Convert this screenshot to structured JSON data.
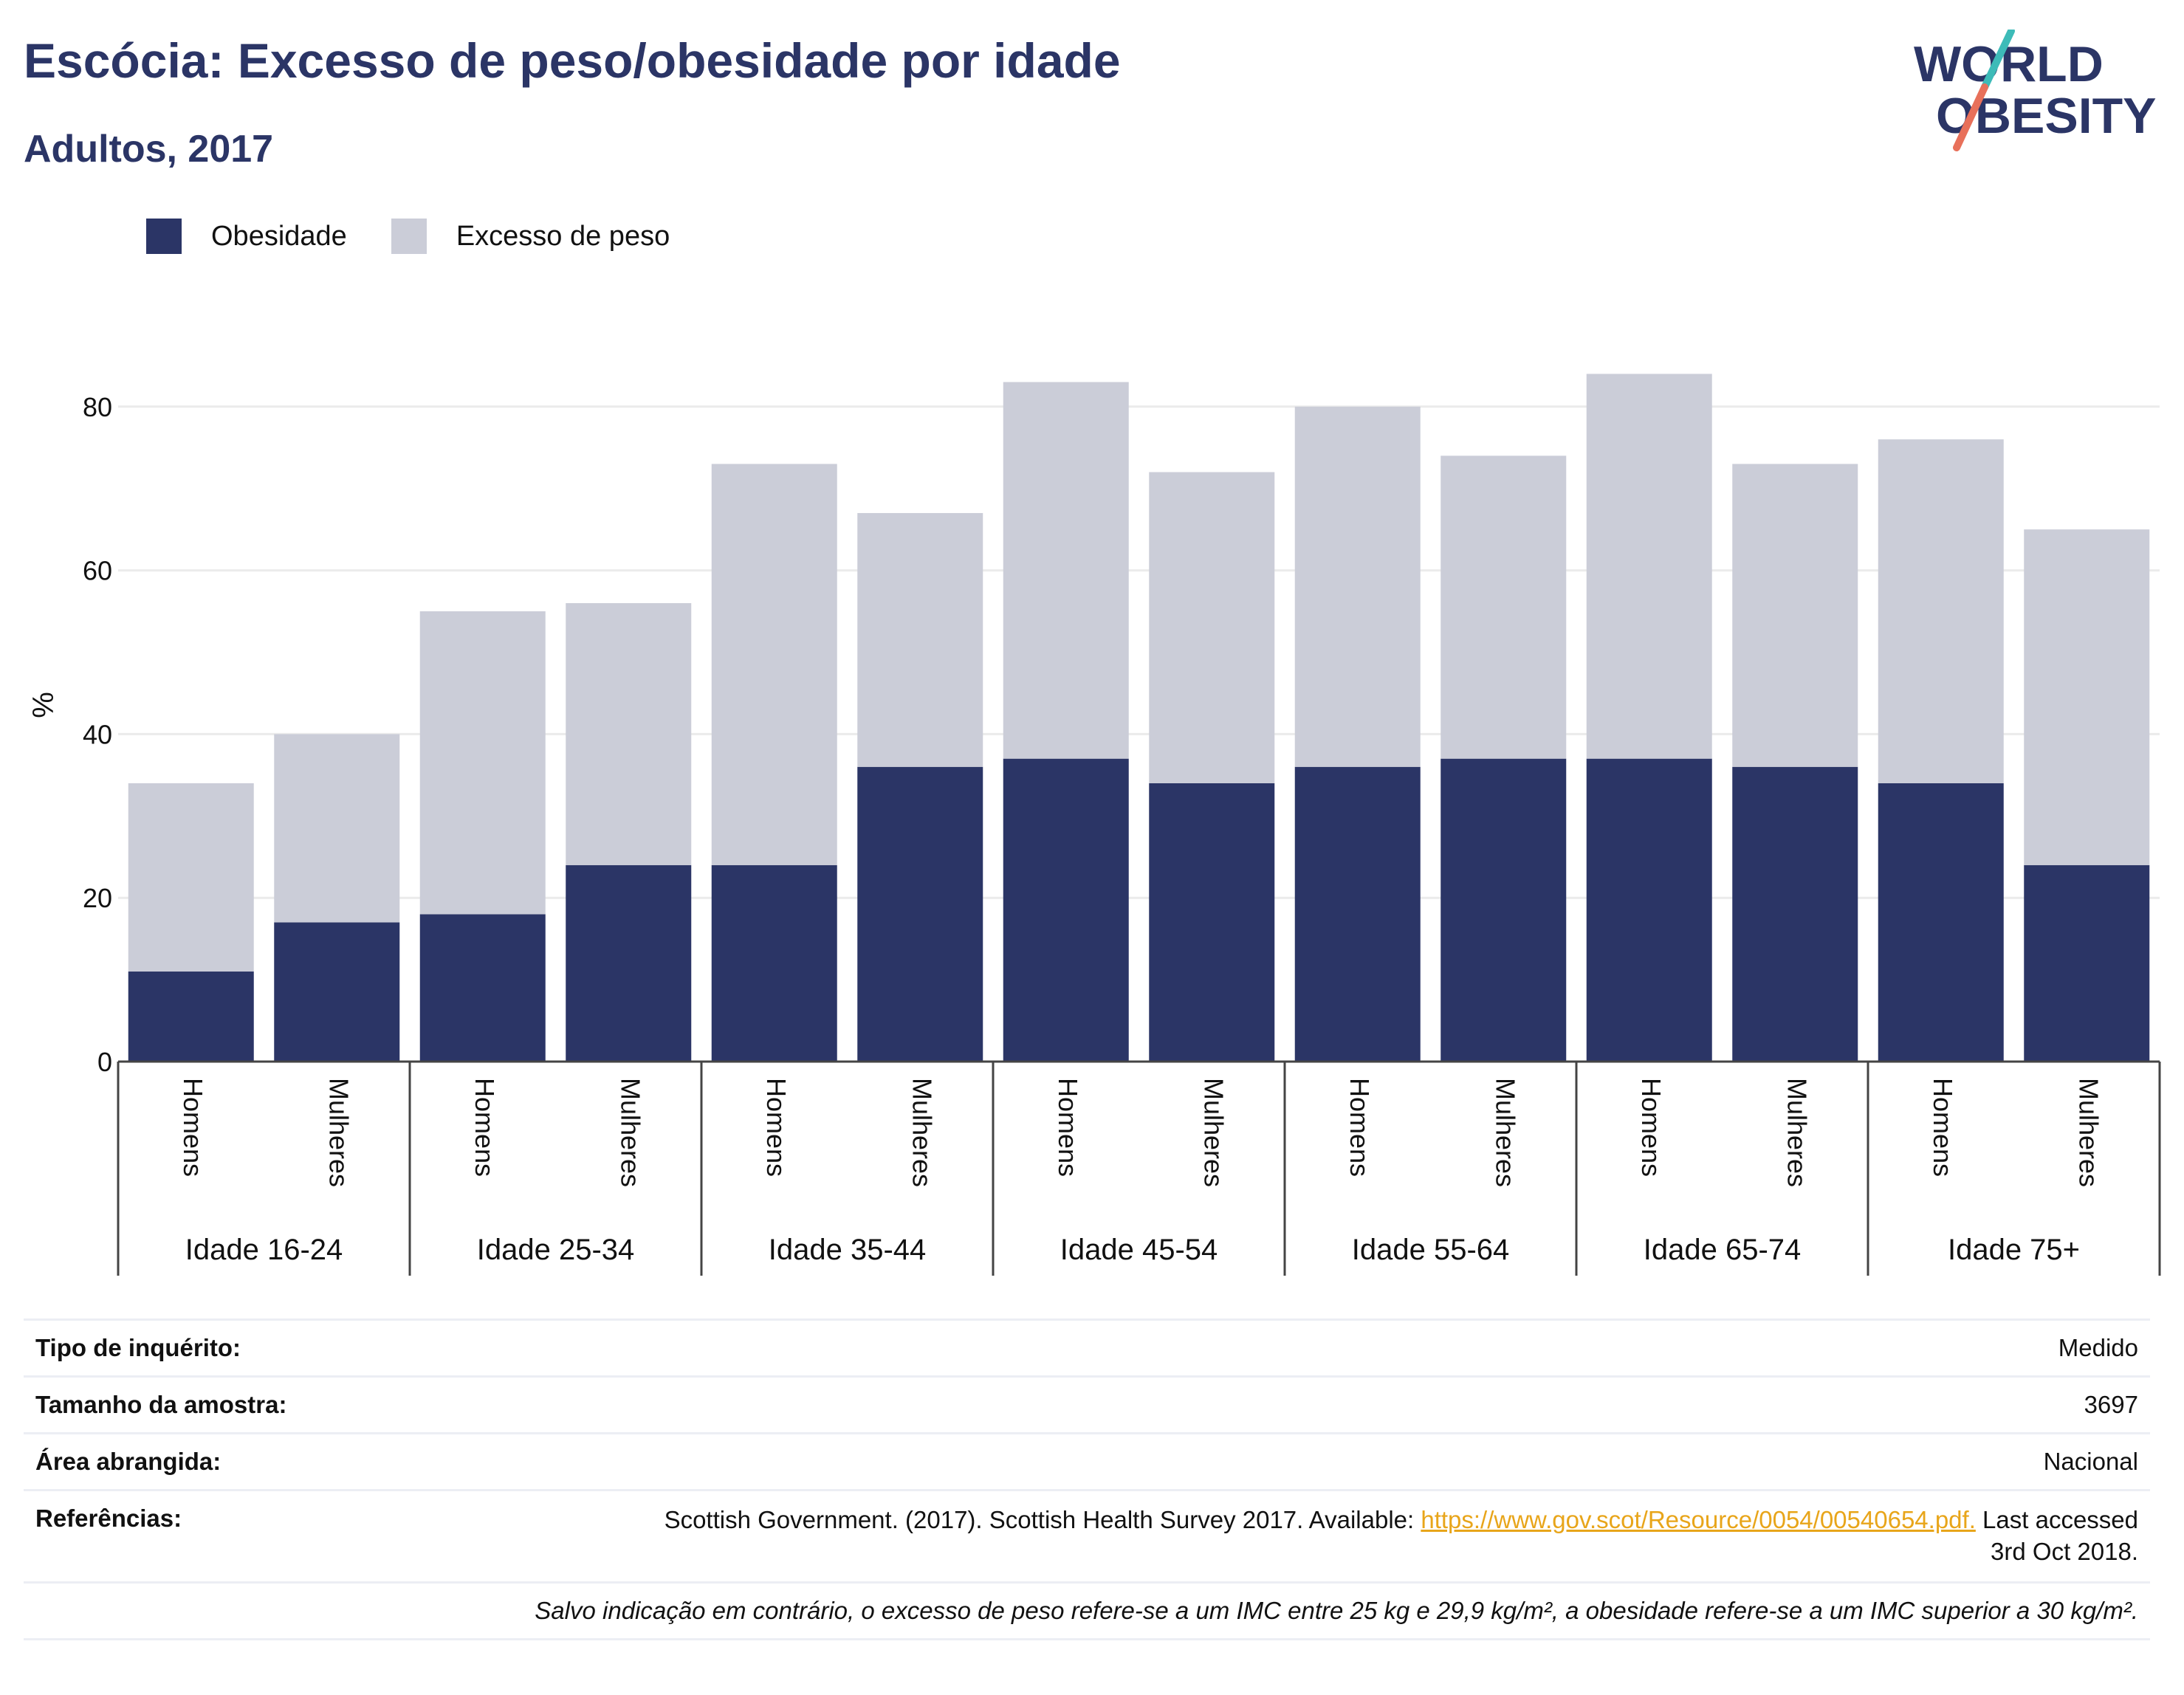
{
  "header": {
    "title": "Escócia: Excesso de peso/obesidade por idade",
    "subtitle": "Adultos, 2017",
    "logo_line1": "WORLD",
    "logo_line2": "OBESITY"
  },
  "legend": {
    "obesity_label": "Obesidade",
    "overweight_label": "Excesso de peso"
  },
  "colors": {
    "obesity": "#2b3566",
    "overweight": "#cbcdd8",
    "title": "#2b3566",
    "link": "#e8a51a",
    "logo_teal": "#3dbbb8",
    "logo_coral": "#e8705a"
  },
  "chart_data": {
    "type": "bar",
    "stacked": true,
    "ylabel": "%",
    "ylim": [
      0,
      90
    ],
    "yticks": [
      0,
      20,
      40,
      60,
      80
    ],
    "grid": true,
    "legend_position": "top-left",
    "groups": [
      "Idade 16-24",
      "Idade 25-34",
      "Idade 35-44",
      "Idade 45-54",
      "Idade 55-64",
      "Idade 65-74",
      "Idade 75+"
    ],
    "categories": [
      "Homens",
      "Mulheres",
      "Homens",
      "Mulheres",
      "Homens",
      "Mulheres",
      "Homens",
      "Mulheres",
      "Homens",
      "Mulheres",
      "Homens",
      "Mulheres",
      "Homens",
      "Mulheres"
    ],
    "series": [
      {
        "name": "Obesidade",
        "values": [
          11,
          17,
          18,
          24,
          24,
          36,
          37,
          34,
          36,
          37,
          37,
          36,
          34,
          24
        ]
      },
      {
        "name": "Excesso de peso",
        "values": [
          23,
          23,
          37,
          32,
          49,
          31,
          46,
          38,
          44,
          37,
          47,
          37,
          42,
          41
        ]
      }
    ]
  },
  "info": {
    "survey_type_label": "Tipo de inquérito:",
    "survey_type_value": "Medido",
    "sample_size_label": "Tamanho da amostra:",
    "sample_size_value": "3697",
    "area_label": "Área abrangida:",
    "area_value": "Nacional",
    "references_label": "Referências:",
    "references_text": "Scottish Government. (2017). Scottish Health Survey 2017. Available: ",
    "references_link": "https://www.gov.scot/Resource/0054/00540654.pdf.",
    "references_tail": " Last accessed 3rd Oct 2018.",
    "footnote": "Salvo indicação em contrário, o excesso de peso refere-se a um IMC entre 25 kg e 29,9 kg/m², a obesidade refere-se a um IMC superior a 30 kg/m²."
  }
}
